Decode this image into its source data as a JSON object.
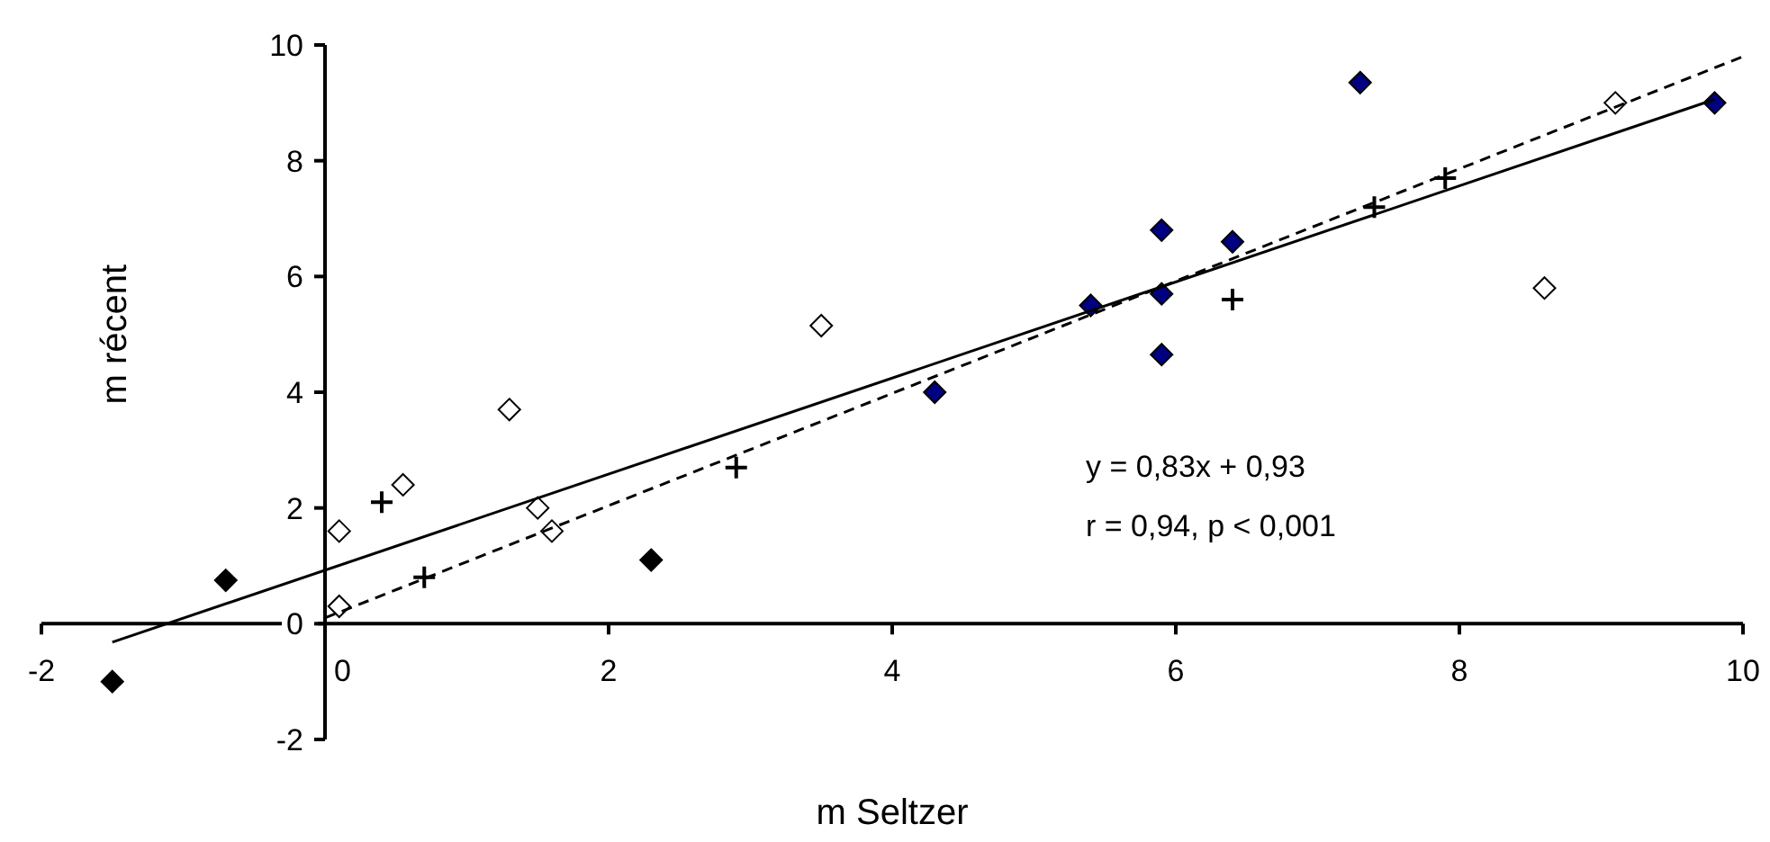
{
  "chart_data": {
    "type": "scatter",
    "xlabel": "m Seltzer",
    "ylabel": "m récent",
    "xlim": [
      -2,
      10
    ],
    "ylim": [
      -2,
      10
    ],
    "xticks": [
      -2,
      0,
      2,
      4,
      6,
      8,
      10
    ],
    "yticks": [
      -2,
      0,
      2,
      4,
      6,
      8,
      10
    ],
    "grid": false,
    "series": [
      {
        "marker": "diamond",
        "x": [
          -1.5,
          -0.7,
          2.3,
          4.3,
          5.4,
          5.9,
          5.9,
          5.9,
          6.4,
          7.3,
          9.8
        ],
        "values": [
          -1.0,
          0.75,
          1.1,
          4.0,
          5.5,
          6.8,
          5.7,
          4.65,
          6.6,
          9.35,
          9.0
        ],
        "colors": [
          "#000000",
          "#000000",
          "#000000",
          "#000080",
          "#000080",
          "#000080",
          "#000080",
          "#000080",
          "#000080",
          "#000080",
          "#000080"
        ]
      },
      {
        "marker": "diamond",
        "color": "#ffffff",
        "x": [
          0.1,
          0.1,
          0.55,
          1.3,
          1.5,
          1.6,
          3.5,
          8.6,
          9.1
        ],
        "values": [
          0.3,
          1.6,
          2.4,
          3.7,
          2.0,
          1.6,
          5.15,
          5.8,
          9.0
        ]
      },
      {
        "marker": "cross",
        "color": "#000000",
        "x": [
          0.4,
          0.7,
          2.9,
          6.4,
          7.4,
          7.9
        ],
        "values": [
          2.1,
          0.8,
          2.7,
          5.6,
          7.2,
          7.7
        ]
      },
      {
        "type": "line",
        "line_style": "solid",
        "color": "#000000",
        "x": [
          -1.5,
          9.8
        ],
        "values": [
          -0.32,
          9.06
        ]
      },
      {
        "type": "line",
        "line_style": "dashed",
        "color": "#000000",
        "x": [
          0,
          10
        ],
        "values": [
          0.1,
          9.8
        ]
      }
    ],
    "annotations": [
      "y = 0,83x + 0,93",
      "r = 0,94, p < 0,001"
    ]
  }
}
